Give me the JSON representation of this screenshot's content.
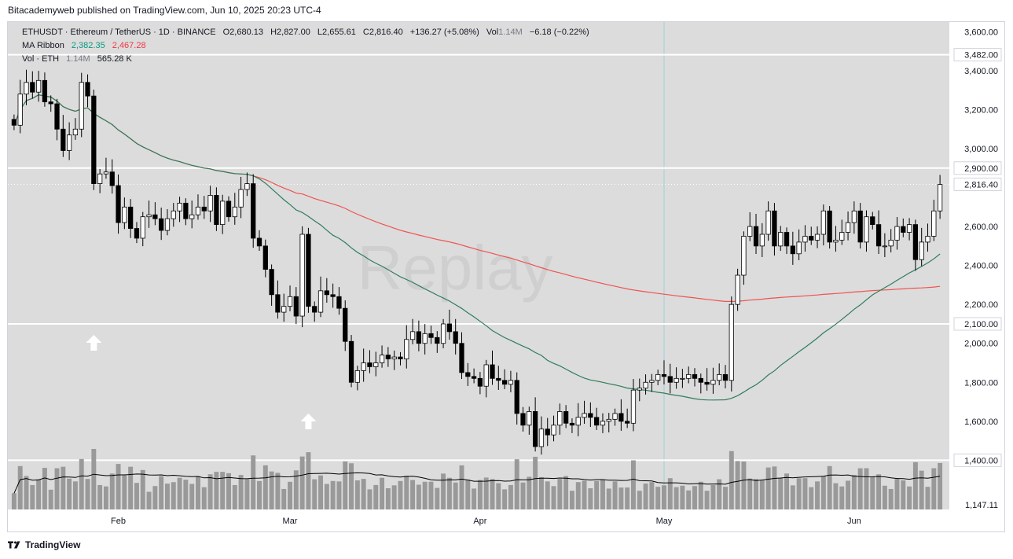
{
  "header": {
    "publisher": "Bitacademyweb published on TradingView.com, Jun 10, 2025 20:23 UTC-4"
  },
  "legend": {
    "symbol": "ETHUSDT · Ethereum / TetherUS · 1D · BINANCE",
    "o_label": "O",
    "o_value": "2,680.13",
    "h_label": "H",
    "h_value": "2,827.00",
    "l_label": "L",
    "l_value": "2,655.61",
    "c_label": "C",
    "c_value": "2,816.40",
    "change": "+136.27 (+5.08%)",
    "vol_label": "Vol",
    "vol_value": "1.14M",
    "vol_change": "−6.18 (−0.22%)",
    "ma_label": "MA Ribbon",
    "ma1_value": "2,382.35",
    "ma2_value": "2,467.28",
    "vol_series_label": "Vol · ETH",
    "vol_series_v1": "1.14M",
    "vol_series_v2": "565.28 K"
  },
  "watermark": "Replay",
  "footer": {
    "brand": "TradingView"
  },
  "colors": {
    "plot_bg": "#dcdcdc",
    "candle_up": "#ffffff",
    "candle_down": "#000000",
    "ma_fast": "#2e7d5b",
    "ma_slow": "#ef5350",
    "volume": "#999999",
    "volume_ma": "#000000",
    "hline": "#ffffff",
    "cursor_line": "#9ed0d6"
  },
  "chart_data": {
    "type": "candlestick",
    "symbol": "ETHUSDT",
    "interval": "1D",
    "ylim": [
      1147.11,
      3650
    ],
    "y_ticks": [
      "3,600.00",
      "3,400.00",
      "3,200.00",
      "3,000.00",
      "2,600.00",
      "2,400.00",
      "2,200.00",
      "2,000.00",
      "1,800.00",
      "1,600.00"
    ],
    "y_tick_values": [
      3600,
      3400,
      3200,
      3000,
      2600,
      2400,
      2200,
      2000,
      1800,
      1600
    ],
    "x_labels": [
      "Feb",
      "Mar",
      "Apr",
      "May",
      "Jun"
    ],
    "x_label_index": [
      17,
      45,
      76,
      106,
      137
    ],
    "horizontal_lines": [
      {
        "label": "3,482.00",
        "value": 3482
      },
      {
        "label": "2,900.00",
        "value": 2900
      },
      {
        "label": "2,100.00",
        "value": 2100
      },
      {
        "label": "1,400.00",
        "value": 1400
      }
    ],
    "last_price": {
      "label": "2,816.40",
      "value": 2816.4
    },
    "bottom_label": "1,147.11",
    "cursor_index": 106,
    "arrows_index": [
      13,
      48
    ],
    "closes": [
      3120,
      3280,
      3340,
      3290,
      3350,
      3240,
      3230,
      3100,
      2990,
      3070,
      3100,
      3340,
      3270,
      2820,
      2870,
      2880,
      2810,
      2620,
      2700,
      2590,
      2540,
      2650,
      2660,
      2640,
      2580,
      2640,
      2680,
      2720,
      2640,
      2660,
      2700,
      2680,
      2760,
      2610,
      2730,
      2650,
      2700,
      2790,
      2820,
      2540,
      2500,
      2380,
      2250,
      2160,
      2190,
      2240,
      2140,
      2560,
      2190,
      2160,
      2270,
      2250,
      2240,
      2180,
      2010,
      1800,
      1860,
      1900,
      1880,
      1900,
      1940,
      1920,
      1930,
      1920,
      2020,
      2060,
      2000,
      2050,
      2030,
      2000,
      2100,
      2060,
      2000,
      1850,
      1830,
      1820,
      1780,
      1890,
      1820,
      1810,
      1790,
      1810,
      1640,
      1580,
      1650,
      1470,
      1560,
      1530,
      1580,
      1650,
      1590,
      1580,
      1620,
      1640,
      1620,
      1580,
      1600,
      1610,
      1640,
      1600,
      1590,
      1760,
      1770,
      1800,
      1810,
      1840,
      1830,
      1800,
      1820,
      1820,
      1840,
      1820,
      1800,
      1790,
      1810,
      1840,
      1810,
      2200,
      2350,
      2550,
      2600,
      2500,
      2560,
      2680,
      2500,
      2570,
      2500,
      2460,
      2520,
      2550,
      2530,
      2560,
      2680,
      2520,
      2530,
      2570,
      2620,
      2680,
      2520,
      2650,
      2610,
      2500,
      2500,
      2530,
      2600,
      2570,
      2610,
      2430,
      2520,
      2550,
      2680,
      2816
    ]
  }
}
